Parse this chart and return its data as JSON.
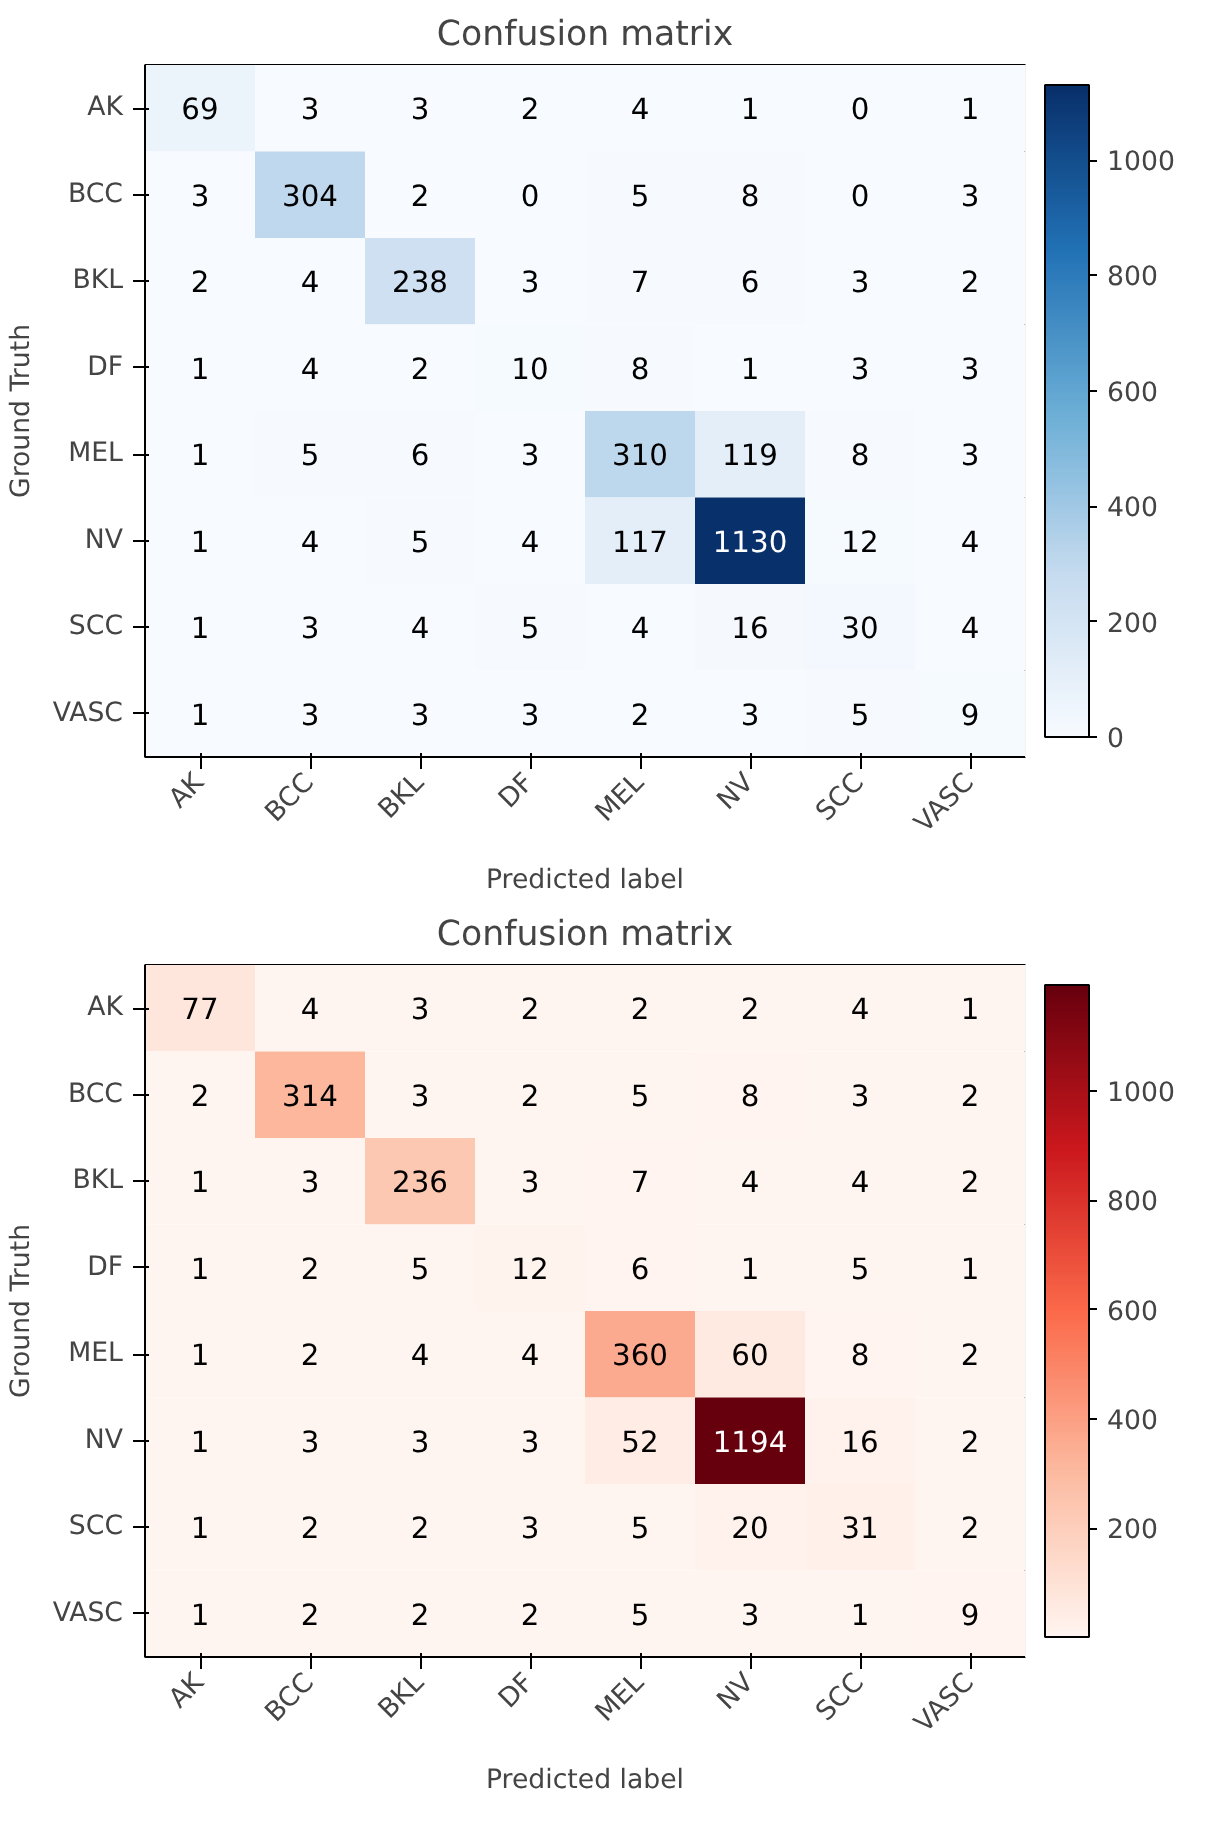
{
  "chart_data": [
    {
      "type": "heatmap",
      "title": "Confusion matrix",
      "xlabel": "Predicted label",
      "ylabel": "Ground Truth",
      "categories": [
        "AK",
        "BCC",
        "BKL",
        "DF",
        "MEL",
        "NV",
        "SCC",
        "VASC"
      ],
      "y_categories": [
        "AK",
        "BCC",
        "BKL",
        "DF",
        "MEL",
        "NV",
        "SCC",
        "VASC"
      ],
      "cells": [
        [
          69,
          3,
          3,
          2,
          4,
          1,
          0,
          1
        ],
        [
          3,
          304,
          2,
          0,
          5,
          8,
          0,
          3
        ],
        [
          2,
          4,
          238,
          3,
          7,
          6,
          3,
          2
        ],
        [
          1,
          4,
          2,
          10,
          8,
          1,
          3,
          3
        ],
        [
          1,
          5,
          6,
          3,
          310,
          119,
          8,
          3
        ],
        [
          1,
          4,
          5,
          4,
          117,
          1130,
          12,
          4
        ],
        [
          1,
          3,
          4,
          5,
          4,
          16,
          30,
          4
        ],
        [
          1,
          3,
          3,
          3,
          2,
          3,
          5,
          9
        ]
      ],
      "clim": [
        0,
        1130
      ],
      "cticks": [
        0,
        200,
        400,
        600,
        800,
        1000
      ],
      "colors": [
        "#f7fbff",
        "#c6dbef",
        "#6baed6",
        "#2171b5",
        "#08306b"
      ],
      "data_labels": true
    },
    {
      "type": "heatmap",
      "title": "Confusion matrix",
      "xlabel": "Predicted label",
      "ylabel": "Ground Truth",
      "categories": [
        "AK",
        "BCC",
        "BKL",
        "DF",
        "MEL",
        "NV",
        "SCC",
        "VASC"
      ],
      "y_categories": [
        "AK",
        "BCC",
        "BKL",
        "DF",
        "MEL",
        "NV",
        "SCC",
        "VASC"
      ],
      "cells": [
        [
          77,
          4,
          3,
          2,
          2,
          2,
          4,
          1
        ],
        [
          2,
          314,
          3,
          2,
          5,
          8,
          3,
          2
        ],
        [
          1,
          3,
          236,
          3,
          7,
          4,
          4,
          2
        ],
        [
          1,
          2,
          5,
          12,
          6,
          1,
          5,
          1
        ],
        [
          1,
          2,
          4,
          4,
          360,
          60,
          8,
          2
        ],
        [
          1,
          3,
          3,
          3,
          52,
          1194,
          16,
          2
        ],
        [
          1,
          2,
          2,
          3,
          5,
          20,
          31,
          2
        ],
        [
          1,
          2,
          2,
          2,
          5,
          3,
          1,
          9
        ]
      ],
      "clim": [
        1,
        1194
      ],
      "cticks": [
        200,
        400,
        600,
        800,
        1000
      ],
      "colors": [
        "#fff5f0",
        "#fcbba1",
        "#fb6a4a",
        "#cb181d",
        "#67000d"
      ],
      "data_labels": true
    }
  ]
}
